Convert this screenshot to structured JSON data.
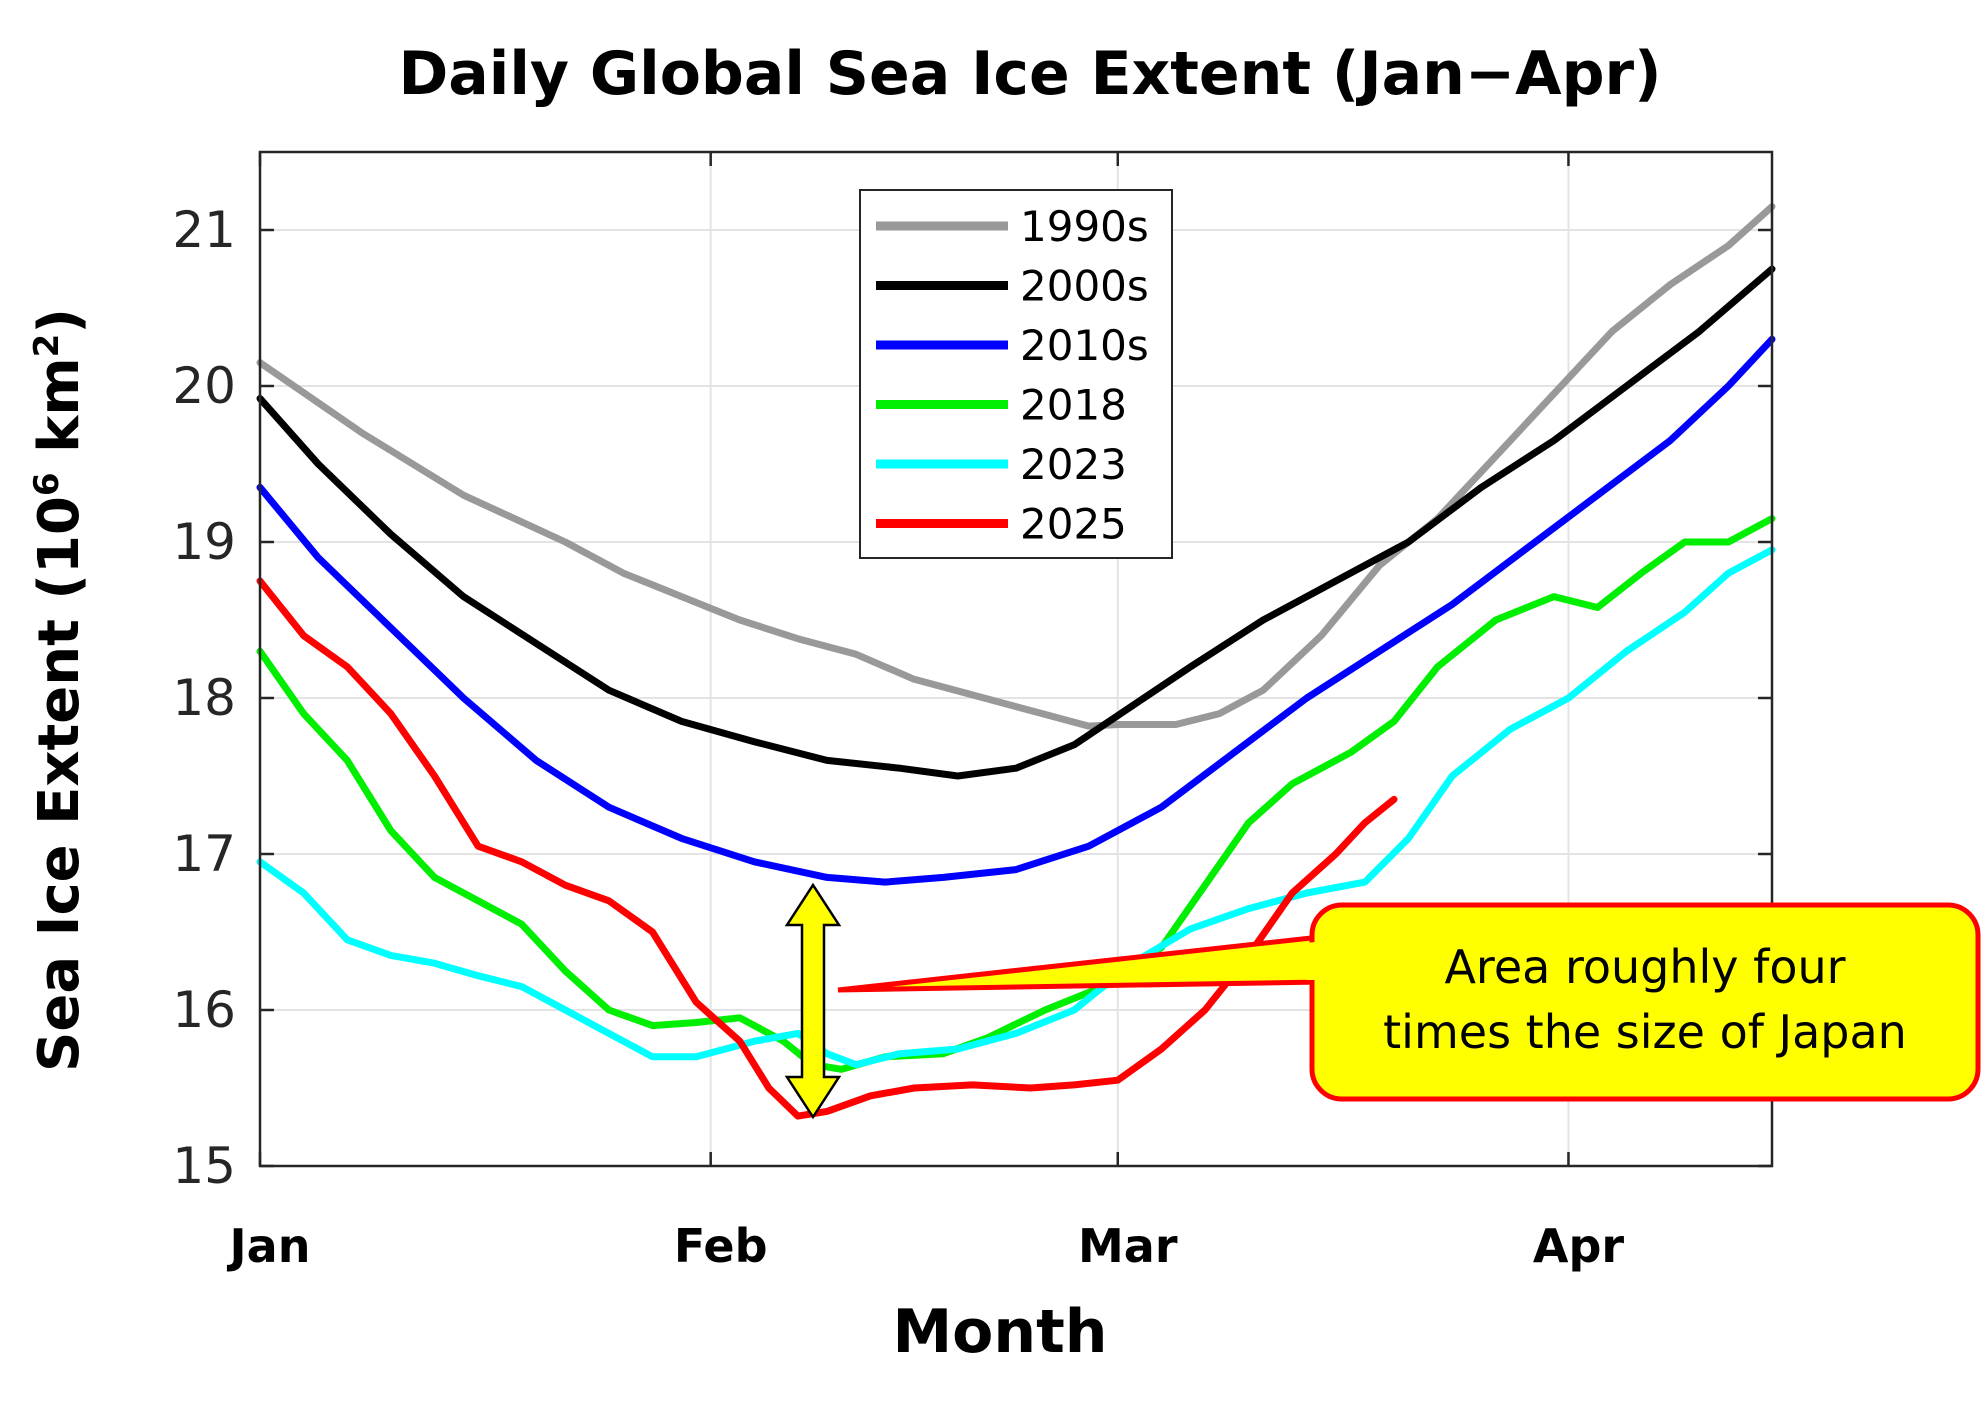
{
  "chart_data": {
    "type": "line",
    "title": "Daily Global Sea Ice Extent (Jan−Apr)",
    "xlabel": "Month",
    "ylabel_main": "Sea Ice Extent (10",
    "ylabel_sup": "6",
    "ylabel_tail": " km",
    "ylabel_sup2": "2",
    "ylabel_end": ")",
    "xlim": [
      1,
      105
    ],
    "ylim": [
      15,
      21.5
    ],
    "yticks": [
      15,
      16,
      17,
      18,
      19,
      20,
      21
    ],
    "xticks": [
      {
        "label": "Jan",
        "day": 1
      },
      {
        "label": "Feb",
        "day": 32
      },
      {
        "label": "Mar",
        "day": 60
      },
      {
        "label": "Apr",
        "day": 91
      }
    ],
    "grid": true,
    "legend_position": "top-center",
    "series": [
      {
        "name": "1990s",
        "color": "#999999",
        "points": [
          [
            1,
            20.15
          ],
          [
            8,
            19.7
          ],
          [
            15,
            19.3
          ],
          [
            22,
            19.0
          ],
          [
            26,
            18.8
          ],
          [
            30,
            18.65
          ],
          [
            34,
            18.5
          ],
          [
            38,
            18.38
          ],
          [
            42,
            18.28
          ],
          [
            46,
            18.12
          ],
          [
            50,
            18.02
          ],
          [
            54,
            17.92
          ],
          [
            58,
            17.82
          ],
          [
            60,
            17.83
          ],
          [
            64,
            17.83
          ],
          [
            67,
            17.9
          ],
          [
            70,
            18.05
          ],
          [
            74,
            18.4
          ],
          [
            78,
            18.85
          ],
          [
            82,
            19.15
          ],
          [
            86,
            19.55
          ],
          [
            90,
            19.95
          ],
          [
            94,
            20.35
          ],
          [
            98,
            20.65
          ],
          [
            102,
            20.9
          ],
          [
            105,
            21.15
          ]
        ]
      },
      {
        "name": "2000s",
        "color": "#000000",
        "points": [
          [
            1,
            19.92
          ],
          [
            5,
            19.5
          ],
          [
            10,
            19.05
          ],
          [
            15,
            18.65
          ],
          [
            20,
            18.35
          ],
          [
            25,
            18.05
          ],
          [
            30,
            17.85
          ],
          [
            35,
            17.72
          ],
          [
            40,
            17.6
          ],
          [
            45,
            17.55
          ],
          [
            49,
            17.5
          ],
          [
            53,
            17.55
          ],
          [
            57,
            17.7
          ],
          [
            61,
            17.95
          ],
          [
            65,
            18.2
          ],
          [
            70,
            18.5
          ],
          [
            75,
            18.75
          ],
          [
            80,
            19.0
          ],
          [
            85,
            19.35
          ],
          [
            90,
            19.65
          ],
          [
            95,
            20.0
          ],
          [
            100,
            20.35
          ],
          [
            105,
            20.75
          ]
        ]
      },
      {
        "name": "2010s",
        "color": "#0000ff",
        "points": [
          [
            1,
            19.35
          ],
          [
            5,
            18.9
          ],
          [
            10,
            18.45
          ],
          [
            15,
            18.0
          ],
          [
            20,
            17.6
          ],
          [
            25,
            17.3
          ],
          [
            30,
            17.1
          ],
          [
            35,
            16.95
          ],
          [
            40,
            16.85
          ],
          [
            44,
            16.82
          ],
          [
            48,
            16.85
          ],
          [
            53,
            16.9
          ],
          [
            58,
            17.05
          ],
          [
            63,
            17.3
          ],
          [
            68,
            17.65
          ],
          [
            73,
            18.0
          ],
          [
            78,
            18.3
          ],
          [
            83,
            18.6
          ],
          [
            88,
            18.95
          ],
          [
            93,
            19.3
          ],
          [
            98,
            19.65
          ],
          [
            102,
            20.0
          ],
          [
            105,
            20.3
          ]
        ]
      },
      {
        "name": "2018",
        "color": "#00ee00",
        "points": [
          [
            1,
            18.3
          ],
          [
            4,
            17.9
          ],
          [
            7,
            17.6
          ],
          [
            10,
            17.15
          ],
          [
            13,
            16.85
          ],
          [
            16,
            16.7
          ],
          [
            19,
            16.55
          ],
          [
            22,
            16.25
          ],
          [
            25,
            16.0
          ],
          [
            28,
            15.9
          ],
          [
            31,
            15.92
          ],
          [
            34,
            15.95
          ],
          [
            37,
            15.8
          ],
          [
            39,
            15.65
          ],
          [
            41,
            15.62
          ],
          [
            44,
            15.7
          ],
          [
            48,
            15.72
          ],
          [
            51,
            15.82
          ],
          [
            55,
            16.0
          ],
          [
            59,
            16.15
          ],
          [
            63,
            16.4
          ],
          [
            66,
            16.8
          ],
          [
            69,
            17.2
          ],
          [
            72,
            17.45
          ],
          [
            76,
            17.65
          ],
          [
            79,
            17.85
          ],
          [
            82,
            18.2
          ],
          [
            86,
            18.5
          ],
          [
            90,
            18.65
          ],
          [
            93,
            18.58
          ],
          [
            96,
            18.8
          ],
          [
            99,
            19.0
          ],
          [
            102,
            19.0
          ],
          [
            105,
            19.15
          ]
        ]
      },
      {
        "name": "2023",
        "color": "#00ffff",
        "points": [
          [
            1,
            16.95
          ],
          [
            4,
            16.75
          ],
          [
            7,
            16.45
          ],
          [
            10,
            16.35
          ],
          [
            13,
            16.3
          ],
          [
            16,
            16.22
          ],
          [
            19,
            16.15
          ],
          [
            22,
            16.0
          ],
          [
            25,
            15.85
          ],
          [
            28,
            15.7
          ],
          [
            31,
            15.7
          ],
          [
            35,
            15.8
          ],
          [
            38,
            15.85
          ],
          [
            40,
            15.72
          ],
          [
            42,
            15.65
          ],
          [
            45,
            15.72
          ],
          [
            49,
            15.75
          ],
          [
            53,
            15.85
          ],
          [
            57,
            16.0
          ],
          [
            61,
            16.3
          ],
          [
            65,
            16.52
          ],
          [
            69,
            16.65
          ],
          [
            73,
            16.75
          ],
          [
            77,
            16.82
          ],
          [
            80,
            17.1
          ],
          [
            83,
            17.5
          ],
          [
            87,
            17.8
          ],
          [
            91,
            18.0
          ],
          [
            95,
            18.3
          ],
          [
            99,
            18.55
          ],
          [
            102,
            18.8
          ],
          [
            105,
            18.95
          ]
        ]
      },
      {
        "name": "2025",
        "color": "#ff0000",
        "points": [
          [
            1,
            18.75
          ],
          [
            4,
            18.4
          ],
          [
            7,
            18.2
          ],
          [
            10,
            17.9
          ],
          [
            13,
            17.5
          ],
          [
            16,
            17.05
          ],
          [
            19,
            16.95
          ],
          [
            22,
            16.8
          ],
          [
            25,
            16.7
          ],
          [
            28,
            16.5
          ],
          [
            31,
            16.05
          ],
          [
            34,
            15.8
          ],
          [
            36,
            15.5
          ],
          [
            38,
            15.32
          ],
          [
            40,
            15.35
          ],
          [
            43,
            15.45
          ],
          [
            46,
            15.5
          ],
          [
            50,
            15.52
          ],
          [
            54,
            15.5
          ],
          [
            57,
            15.52
          ],
          [
            60,
            15.55
          ],
          [
            63,
            15.75
          ],
          [
            66,
            16.0
          ],
          [
            69,
            16.35
          ],
          [
            72,
            16.75
          ],
          [
            75,
            17.0
          ],
          [
            77,
            17.2
          ],
          [
            79,
            17.35
          ]
        ]
      }
    ]
  },
  "annotation": {
    "line1": "Area roughly four",
    "line2": "times the size of Japan",
    "box_fill": "#ffff00",
    "box_stroke": "#ff0000",
    "arrow_fill": "#ffff00"
  }
}
